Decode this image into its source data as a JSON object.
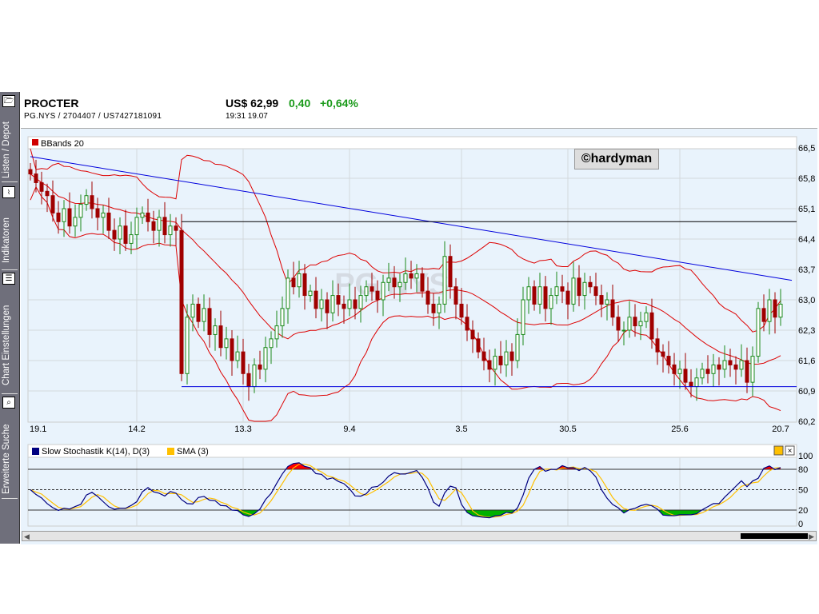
{
  "sidebar": {
    "tabs": [
      {
        "label": "Listen / Depot",
        "icon": "folder-icon"
      },
      {
        "label": "Indikatoren",
        "icon": "indicator-chart-icon"
      },
      {
        "label": "Chart Einstellungen",
        "icon": "list-settings-icon"
      },
      {
        "label": "Erweiterte Suche",
        "icon": "search-icon"
      }
    ]
  },
  "header": {
    "name": "PROCTER",
    "ids": "PG.NYS  /  2704407  /  US7427181091",
    "price": "US$ 62,99",
    "change": "0,40",
    "change_pct": "+0,64%",
    "time": "19:31   19.07"
  },
  "watermark": "©hardyman",
  "colors": {
    "up": "#1a8a1a",
    "down": "#a00000",
    "band": "#dd0000",
    "trend": "#0000dd",
    "k": "#000080",
    "d": "#ffc000"
  },
  "chart_data": [
    {
      "type": "candlestick",
      "title": "BBands 20",
      "symbol_watermark": "PG.NYS",
      "ylim": [
        60.2,
        66.5
      ],
      "yticks": [
        "66,5",
        "65,8",
        "65,1",
        "64,4",
        "63,7",
        "63,0",
        "62,3",
        "61,6",
        "60,9",
        "60,2"
      ],
      "ytick_values": [
        66.5,
        65.8,
        65.1,
        64.4,
        63.7,
        63.0,
        62.3,
        61.6,
        60.9,
        60.2
      ],
      "xticks": [
        "19.1",
        "14.2",
        "13.3",
        "9.4",
        "3.5",
        "30.5",
        "25.6",
        "20.7"
      ],
      "xtick_index": [
        1,
        19,
        38,
        57,
        77,
        96,
        116,
        134
      ],
      "closes": [
        65.9,
        65.7,
        65.5,
        65.4,
        65.0,
        64.8,
        65.1,
        64.7,
        64.9,
        65.2,
        65.4,
        65.1,
        64.9,
        65.0,
        64.6,
        64.4,
        64.7,
        64.3,
        64.5,
        64.9,
        65.0,
        64.8,
        64.6,
        64.9,
        64.5,
        64.7,
        64.6,
        61.3,
        62.6,
        62.9,
        62.5,
        62.8,
        62.2,
        62.4,
        61.9,
        62.1,
        61.6,
        61.8,
        61.3,
        61.0,
        61.5,
        61.4,
        61.9,
        62.1,
        62.4,
        62.8,
        63.5,
        63.3,
        63.6,
        63.1,
        63.2,
        62.8,
        63.0,
        62.7,
        63.1,
        62.9,
        62.8,
        63.0,
        62.8,
        63.1,
        63.3,
        63.2,
        63.0,
        63.4,
        63.5,
        63.3,
        63.4,
        63.6,
        63.5,
        63.6,
        63.2,
        62.9,
        62.7,
        62.9,
        64.0,
        63.3,
        62.9,
        62.6,
        62.3,
        62.1,
        61.8,
        61.6,
        61.4,
        61.7,
        61.5,
        61.8,
        61.6,
        62.2,
        63.0,
        63.3,
        62.9,
        63.3,
        62.8,
        63.1,
        63.3,
        63.2,
        62.9,
        63.5,
        63.1,
        63.4,
        63.3,
        63.1,
        62.9,
        63.0,
        62.6,
        62.3,
        62.3,
        62.6,
        62.4,
        62.5,
        62.7,
        62.1,
        61.8,
        61.7,
        61.5,
        61.3,
        61.4,
        61.1,
        61.0,
        61.2,
        61.4,
        61.3,
        61.5,
        61.4,
        61.6,
        61.5,
        61.4,
        61.6,
        61.1,
        61.7,
        62.8,
        62.5,
        63.0,
        62.6,
        62.9
      ],
      "bollinger_period": 20,
      "trendlines": [
        {
          "from": [
            0,
            66.3
          ],
          "to": [
            136,
            63.45
          ],
          "color": "blue"
        },
        {
          "from": [
            27,
            64.8
          ],
          "to": [
            137,
            64.8
          ],
          "color": "black"
        },
        {
          "from": [
            27,
            61.0
          ],
          "to": [
            137,
            61.0
          ],
          "color": "blue"
        }
      ]
    },
    {
      "type": "line",
      "title": "Slow Stochastik K(14), D(3)",
      "legend": [
        "Slow Stochastik K(14), D(3)",
        "SMA (3)"
      ],
      "ylim": [
        0,
        100
      ],
      "yticks": [
        "100",
        "80",
        "50",
        "20",
        "0"
      ],
      "ytick_values": [
        100,
        80,
        50,
        20,
        0
      ],
      "levels": [
        80,
        50,
        20
      ]
    }
  ]
}
